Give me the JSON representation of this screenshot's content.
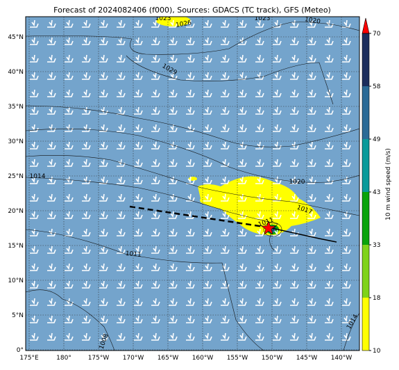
{
  "title": "Forecast of 2024082406 (f000), Sources: GDACS (TC track), GFS (Meteo)",
  "map": {
    "lon_labels": [
      "175°E",
      "180°",
      "175°W",
      "170°W",
      "165°W",
      "160°W",
      "155°W",
      "150°W",
      "145°W",
      "140°W"
    ],
    "lat_labels": [
      "0°",
      "5°N",
      "10°N",
      "15°N",
      "20°N",
      "25°N",
      "30°N",
      "35°N",
      "40°N",
      "45°N"
    ],
    "contour_labels": [
      "1023",
      "1026",
      "1023",
      "1020",
      "1029",
      "1014",
      "1020",
      "1017",
      "1011",
      "1011",
      "1008",
      "1014"
    ]
  },
  "colorbar": {
    "label": "10 m wind speed (m/s)",
    "ticks": [
      10,
      18,
      33,
      43,
      49,
      58,
      70
    ],
    "colors": [
      "#ffff00",
      "#7fd31a",
      "#0aa30a",
      "#0a9a9a",
      "#2b6a96",
      "#1c2d5c"
    ],
    "extend_color": "#ff0000"
  }
}
